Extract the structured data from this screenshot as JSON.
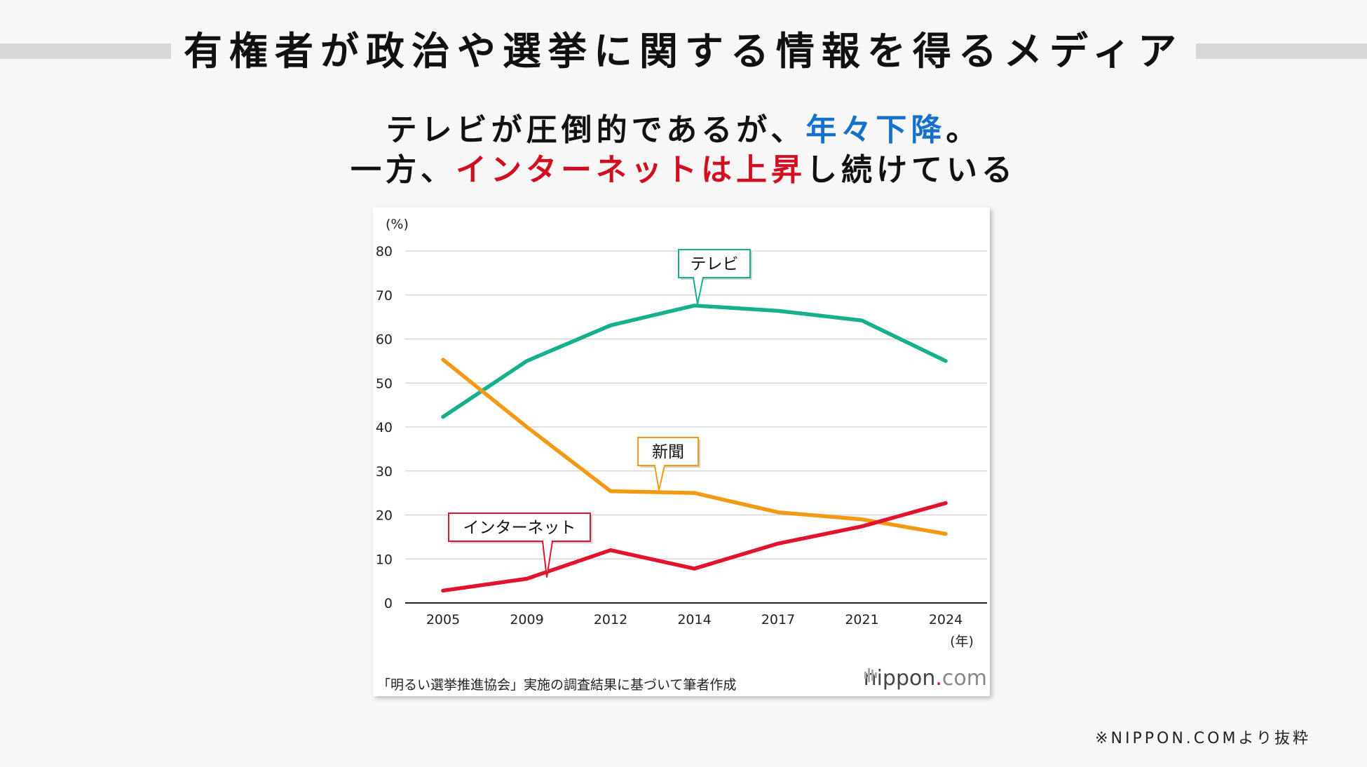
{
  "page": {
    "title": "有権者が政治や選挙に関する情報を得るメディア",
    "subtitle_line1_part1": "テレビが圧倒的であるが、",
    "subtitle_line1_highlight": "年々下降",
    "subtitle_line1_part2": "。",
    "subtitle_line2_part1": "一方、",
    "subtitle_line2_highlight": "インターネットは上昇",
    "subtitle_line2_part2": "し続けている",
    "credit": "※NIPPON.COMより抜粋",
    "colors": {
      "highlight_blue": "#1571c9",
      "highlight_red": "#d01020"
    }
  },
  "chart_data": {
    "type": "line",
    "x": [
      "2005",
      "2009",
      "2012",
      "2014",
      "2017",
      "2021",
      "2024"
    ],
    "series": [
      {
        "name": "テレビ",
        "color": "#16b08e",
        "values": [
          42.3,
          55.0,
          63.1,
          67.6,
          66.4,
          64.2,
          55.0
        ]
      },
      {
        "name": "新聞",
        "color": "#f29a14",
        "values": [
          55.3,
          40.0,
          25.4,
          25.0,
          20.6,
          19.0,
          15.7
        ]
      },
      {
        "name": "インターネット",
        "color": "#e0152d",
        "values": [
          2.8,
          5.5,
          12.0,
          7.8,
          13.5,
          17.4,
          22.7
        ]
      }
    ],
    "ylim": [
      0,
      80
    ],
    "yticks": [
      "0",
      "10",
      "20",
      "30",
      "40",
      "50",
      "60",
      "70",
      "80"
    ],
    "ylabel": "(%)",
    "xlabel": "(年)",
    "grid": true,
    "source": "「明るい選挙推進協会」実施の調査結果に基づいて筆者作成",
    "logo_text": "nippon",
    "logo_dot": ".",
    "logo_suffix": "com"
  }
}
